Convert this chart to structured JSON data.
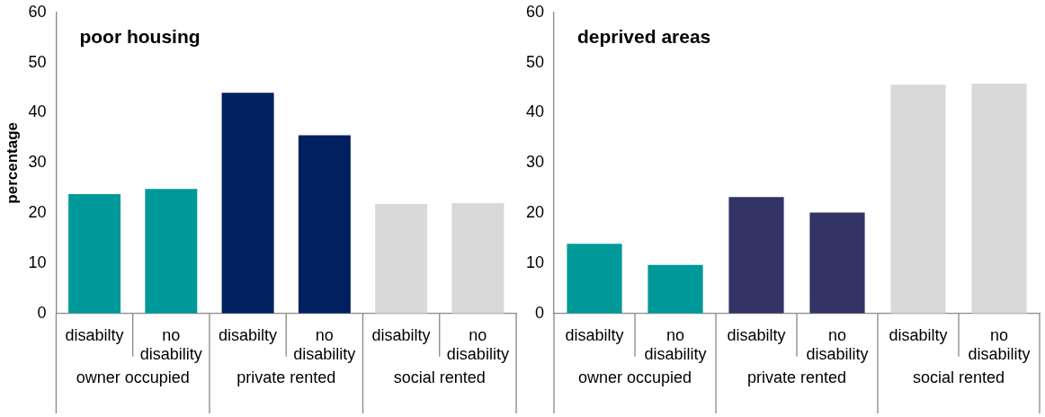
{
  "chart_data": [
    {
      "type": "bar",
      "title": "poor housing",
      "ylabel": "percentage",
      "categories": [
        "disabilty",
        "no disability",
        "disabilty",
        "no disability",
        "disabilty",
        "no disability"
      ],
      "values": [
        23.8,
        24.8,
        44,
        35.5,
        21.8,
        22
      ],
      "colors": [
        "#009999",
        "#009999",
        "#002060",
        "#002060",
        "#d9d9d9",
        "#d9d9d9"
      ],
      "ylim": [
        0,
        60
      ],
      "yticks": [
        0,
        10,
        20,
        30,
        40,
        50,
        60
      ],
      "annotations": [
        "owner occupied",
        "private rented",
        "social rented"
      ],
      "legend": false
    },
    {
      "type": "bar",
      "title": "deprived areas",
      "categories": [
        "disabilty",
        "no disability",
        "disabilty",
        "no disability",
        "disabilty",
        "no disability"
      ],
      "values": [
        13.9,
        9.7,
        23.2,
        20.1,
        45.6,
        45.8
      ],
      "colors": [
        "#009999",
        "#009999",
        "#333366",
        "#333366",
        "#d9d9d9",
        "#d9d9d9"
      ],
      "ylim": [
        0,
        60
      ],
      "yticks": [
        0,
        10,
        20,
        30,
        40,
        50,
        60
      ],
      "annotations": [
        "owner occupied",
        "private rented",
        "social rented"
      ],
      "legend": false
    }
  ]
}
